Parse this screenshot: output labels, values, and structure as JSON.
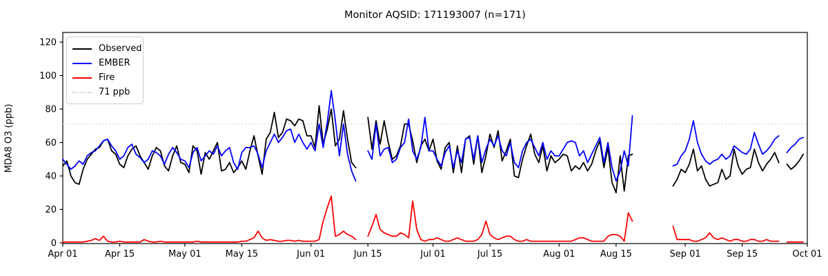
{
  "title": "Monitor AQSID: 171193007 (n=171)",
  "ylabel": "MDA8 O3 (ppb)",
  "chart_data": {
    "type": "line",
    "x_axis": "daily dates Apr 01 - Sep 30",
    "x_days_total": 183,
    "ylim": [
      0,
      126
    ],
    "grid": false,
    "legend_position": "upper left",
    "x_ticks": [
      {
        "day": 0,
        "label": "Apr 01"
      },
      {
        "day": 14,
        "label": "Apr 15"
      },
      {
        "day": 30,
        "label": "May 01"
      },
      {
        "day": 44,
        "label": "May 15"
      },
      {
        "day": 61,
        "label": "Jun 01"
      },
      {
        "day": 75,
        "label": "Jun 15"
      },
      {
        "day": 91,
        "label": "Jul 01"
      },
      {
        "day": 105,
        "label": "Jul 15"
      },
      {
        "day": 122,
        "label": "Aug 01"
      },
      {
        "day": 136,
        "label": "Aug 15"
      },
      {
        "day": 153,
        "label": "Sep 01"
      },
      {
        "day": 167,
        "label": "Sep 15"
      },
      {
        "day": 183,
        "label": "Oct 01"
      }
    ],
    "y_ticks": [
      0,
      20,
      40,
      60,
      80,
      100,
      120
    ],
    "threshold": {
      "label": "71 ppb",
      "value": 71,
      "color": "#d3d3d3",
      "style": "dotted"
    },
    "missing_days": [
      "Jun 13",
      "Jun 14",
      "Aug 20 - Aug 28",
      "Sep 25"
    ],
    "series": [
      {
        "name": "Observed",
        "color": "#000000",
        "values": [
          46,
          49,
          40,
          36,
          35,
          44,
          50,
          53,
          56,
          57,
          61,
          62,
          55,
          53,
          47,
          45,
          52,
          56,
          58,
          52,
          48,
          44,
          52,
          57,
          55,
          46,
          43,
          52,
          58,
          48,
          47,
          42,
          58,
          55,
          41,
          54,
          50,
          55,
          60,
          43,
          44,
          48,
          42,
          45,
          49,
          44,
          55,
          64,
          52,
          41,
          62,
          66,
          78,
          63,
          66,
          74,
          73,
          70,
          74,
          73,
          64,
          64,
          57,
          82,
          59,
          68,
          80,
          58,
          62,
          79,
          62,
          48,
          45,
          null,
          null,
          75,
          56,
          73,
          59,
          73,
          60,
          50,
          52,
          58,
          71,
          71,
          61,
          48,
          58,
          62,
          55,
          62,
          49,
          44,
          57,
          60,
          42,
          58,
          42,
          62,
          64,
          47,
          64,
          42,
          52,
          65,
          57,
          67,
          49,
          55,
          62,
          40,
          39,
          50,
          58,
          65,
          53,
          48,
          58,
          43,
          52,
          48,
          50,
          53,
          52,
          43,
          46,
          44,
          48,
          43,
          47,
          55,
          61,
          45,
          57,
          36,
          30,
          52,
          31,
          52,
          53,
          null,
          null,
          null,
          null,
          null,
          null,
          null,
          null,
          null,
          34,
          38,
          44,
          42,
          47,
          56,
          43,
          46,
          38,
          34,
          35,
          36,
          44,
          38,
          40,
          56,
          46,
          41,
          44,
          45,
          56,
          48,
          43,
          47,
          50,
          54,
          48,
          null,
          47,
          44,
          46,
          49,
          53
        ]
      },
      {
        "name": "EMBER",
        "color": "#0000ff",
        "values": [
          50,
          47,
          44,
          46,
          49,
          47,
          52,
          54,
          55,
          58,
          61,
          62,
          58,
          55,
          50,
          52,
          57,
          59,
          53,
          51,
          48,
          50,
          55,
          54,
          52,
          47,
          53,
          57,
          54,
          50,
          49,
          45,
          54,
          57,
          49,
          52,
          55,
          53,
          58,
          52,
          55,
          57,
          48,
          44,
          54,
          57,
          57,
          58,
          53,
          45,
          55,
          60,
          65,
          60,
          63,
          67,
          68,
          60,
          65,
          60,
          56,
          60,
          55,
          71,
          57,
          72,
          91,
          73,
          52,
          71,
          53,
          43,
          37,
          null,
          null,
          55,
          50,
          71,
          52,
          56,
          57,
          48,
          50,
          57,
          60,
          74,
          55,
          50,
          57,
          75,
          55,
          55,
          50,
          46,
          54,
          58,
          45,
          55,
          48,
          62,
          63,
          50,
          64,
          48,
          56,
          62,
          58,
          64,
          55,
          52,
          60,
          48,
          45,
          55,
          60,
          62,
          57,
          52,
          60,
          50,
          55,
          52,
          52,
          56,
          60,
          61,
          60,
          52,
          55,
          48,
          53,
          58,
          63,
          48,
          60,
          45,
          37,
          43,
          55,
          46,
          76,
          null,
          null,
          null,
          null,
          null,
          null,
          null,
          null,
          null,
          46,
          47,
          52,
          55,
          62,
          73,
          60,
          53,
          49,
          47,
          49,
          50,
          53,
          50,
          52,
          58,
          56,
          54,
          53,
          56,
          66,
          59,
          53,
          55,
          58,
          62,
          64,
          null,
          54,
          57,
          59,
          62,
          63
        ]
      },
      {
        "name": "Fire",
        "color": "#ff0000",
        "values": [
          0.5,
          0.5,
          0.5,
          0.5,
          0.5,
          0.5,
          1,
          1.5,
          2.5,
          1.5,
          4,
          1,
          0.5,
          0.5,
          1,
          0.5,
          0.5,
          0.5,
          0.5,
          0.5,
          2,
          1,
          0.5,
          0.5,
          1,
          0.5,
          0.5,
          0.5,
          0.5,
          0.5,
          0.5,
          0.5,
          0.5,
          1,
          0.5,
          0.5,
          0.5,
          0.5,
          0.5,
          0.5,
          0.5,
          0.5,
          0.5,
          0.5,
          1,
          1,
          2,
          3,
          7,
          3,
          1.5,
          2,
          1.5,
          1,
          1,
          1.5,
          1.5,
          1,
          1.5,
          1,
          1,
          1,
          1,
          2,
          13,
          21,
          28,
          4,
          5,
          7,
          5,
          4,
          2,
          null,
          null,
          4,
          10,
          17,
          8,
          6,
          5,
          4,
          4,
          6,
          5,
          3,
          25,
          8,
          2,
          1,
          2,
          2,
          3,
          2,
          1,
          1,
          2,
          3,
          2,
          1,
          1,
          1,
          2,
          5,
          13,
          5,
          3,
          2,
          3,
          4,
          4,
          2,
          1,
          1,
          2,
          1,
          1,
          1,
          1,
          1,
          1,
          1,
          1,
          1,
          1,
          1,
          2,
          3,
          3,
          2,
          1,
          1,
          1,
          1,
          4,
          5,
          5,
          4,
          1,
          18,
          13,
          null,
          null,
          null,
          null,
          null,
          null,
          null,
          null,
          null,
          10,
          2,
          2,
          2,
          2,
          1,
          1,
          2,
          3,
          6,
          3,
          2,
          3,
          2,
          1,
          2,
          2,
          1,
          1,
          2,
          2,
          1,
          1,
          2,
          1,
          1,
          1,
          null,
          0.5,
          0.5,
          0.5,
          0.5,
          0.5
        ]
      }
    ]
  },
  "legend": {
    "items": [
      {
        "label": "Observed"
      },
      {
        "label": "EMBER"
      },
      {
        "label": "Fire"
      },
      {
        "label": "71 ppb"
      }
    ]
  }
}
